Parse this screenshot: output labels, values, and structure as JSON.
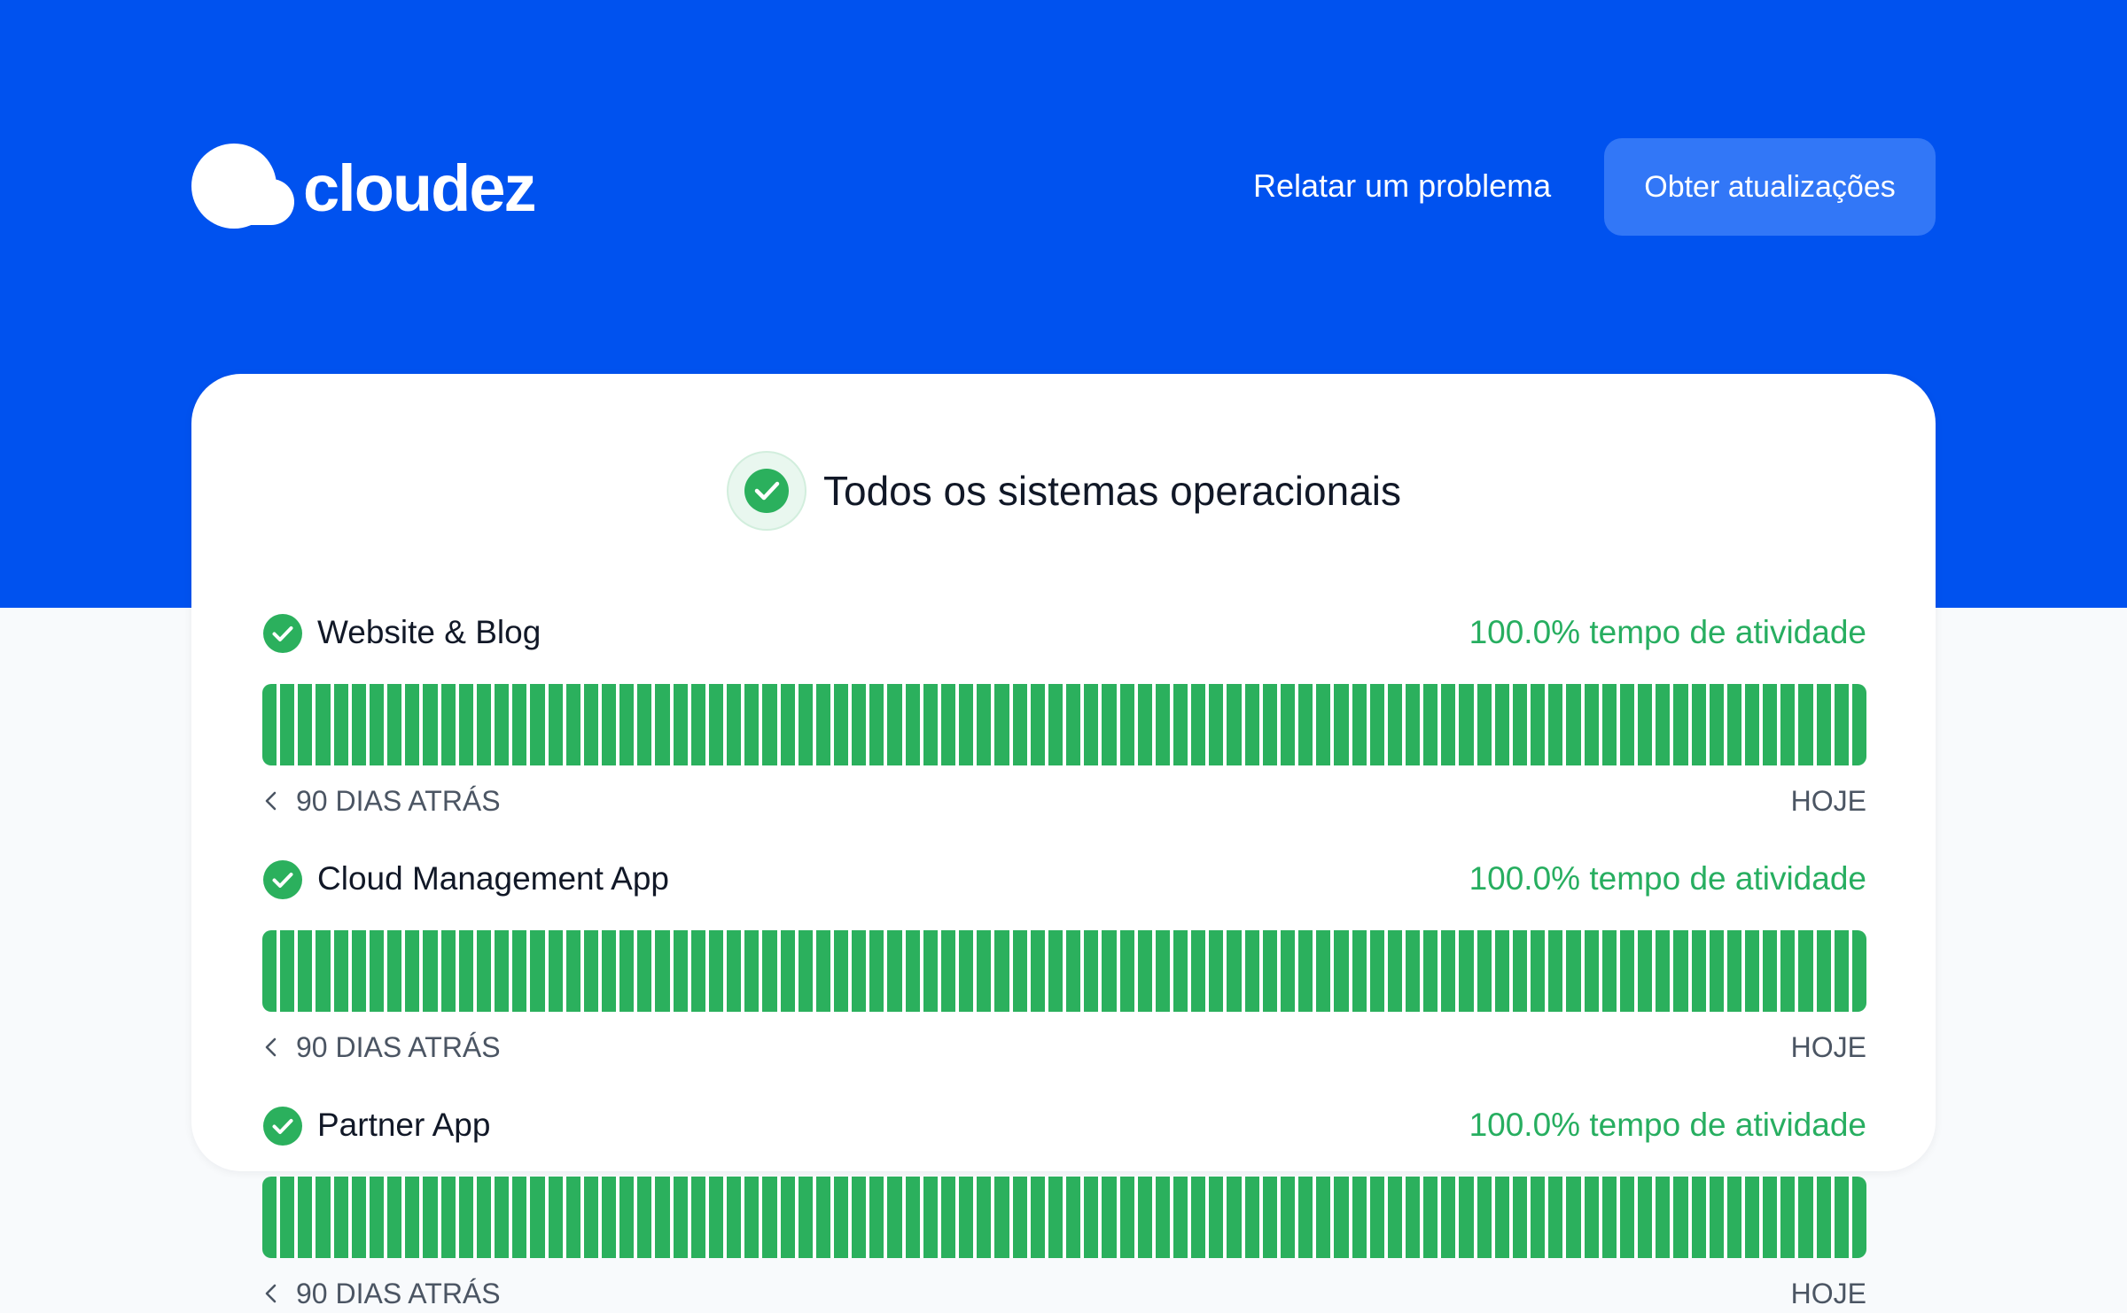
{
  "brand": {
    "name": "cloudez",
    "logo_icon": "cloud-icon",
    "primary_color": "#0052ef",
    "button_color": "#3277f7"
  },
  "header": {
    "report_link": "Relatar um problema",
    "subscribe_button": "Obter atualizações"
  },
  "status": {
    "overall_text": "Todos os sistemas operacionais",
    "icon": "check-circle-icon",
    "operational_color": "#2bb05d",
    "uptime_text_color": "#27ae60"
  },
  "services": [
    {
      "name": "Website & Blog",
      "uptime": "100.0% tempo de atividade",
      "left_label": "90 DIAS ATRÁS",
      "right_label": "HOJE",
      "days": 90,
      "status": "operational"
    },
    {
      "name": "Cloud Management App",
      "uptime": "100.0% tempo de atividade",
      "left_label": "90 DIAS ATRÁS",
      "right_label": "HOJE",
      "days": 90,
      "status": "operational"
    },
    {
      "name": "Partner App",
      "uptime": "100.0% tempo de atividade",
      "left_label": "90 DIAS ATRÁS",
      "right_label": "HOJE",
      "days": 90,
      "status": "operational"
    }
  ]
}
